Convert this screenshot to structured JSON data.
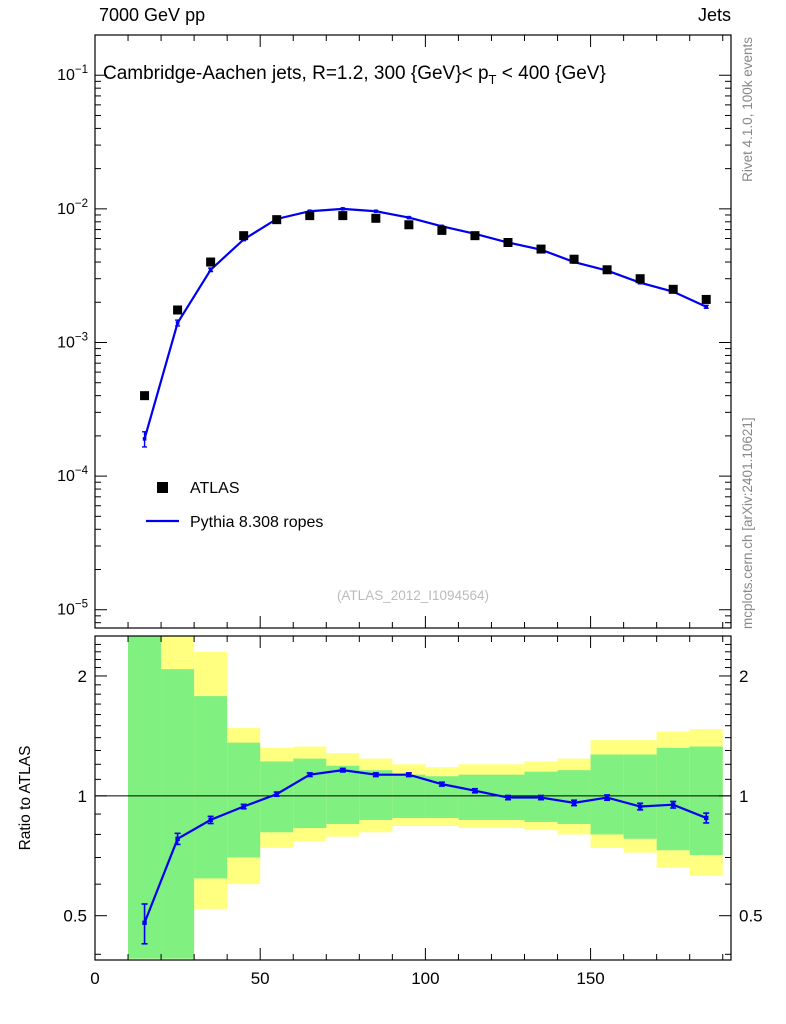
{
  "ui": {
    "header_left": "7000 GeV pp",
    "header_right": "Jets",
    "title_pre": "Cambridge-Aachen jets, R=1.2, 300 {GeV}< p",
    "title_sub": "T",
    "title_post": " < 400 {GeV}",
    "legend_atlas": "ATLAS",
    "legend_mc": "Pythia 8.308 ropes",
    "watermark": "(ATLAS_2012_I1094564)",
    "ratio_ylabel": "Ratio to ATLAS",
    "note_top": "Rivet 4.1.0,  100k events",
    "note_bottom": "mcplots.cern.ch [arXiv:2401.10621]"
  },
  "colors": {
    "mc_line": "#0000f0",
    "data_marker": "#000000",
    "band_yellow": "#ffff80",
    "band_green": "#80f080",
    "ref_line": "#000000",
    "note_gray": "#888888",
    "watermark_gray": "#bbbbbb"
  },
  "chart_data": [
    {
      "type": "line",
      "panel": "main",
      "title": "Cambridge-Aachen jets, R=1.2, 300 {GeV}< pT < 400 {GeV}",
      "yscale": "log",
      "ylim": [
        7.3e-06,
        0.2
      ],
      "xlim": [
        0,
        192.5
      ],
      "ytick_exponents": [
        -1,
        -2,
        -3,
        -4,
        -5
      ],
      "xticks_major": [
        0,
        50,
        100,
        150
      ],
      "xtick_minor_step": 10,
      "x": [
        15,
        25,
        35,
        45,
        55,
        65,
        75,
        85,
        95,
        105,
        115,
        125,
        135,
        145,
        155,
        165,
        175,
        185
      ],
      "series": [
        {
          "name": "ATLAS",
          "type": "scatter",
          "marker": "square",
          "color": "#000000",
          "values": [
            0.0004,
            0.00175,
            0.004,
            0.0063,
            0.0083,
            0.0089,
            0.0089,
            0.0085,
            0.0076,
            0.0069,
            0.0063,
            0.0056,
            0.005,
            0.0042,
            0.0035,
            0.003,
            0.0025,
            0.0021
          ]
        },
        {
          "name": "Pythia 8.308 ropes",
          "type": "line",
          "color": "#0000f0",
          "values": [
            0.00019,
            0.0014,
            0.0035,
            0.0059,
            0.0084,
            0.0096,
            0.01,
            0.0096,
            0.0086,
            0.0074,
            0.0065,
            0.0056,
            0.00495,
            0.004,
            0.00345,
            0.0028,
            0.0024,
            0.00185
          ],
          "yerr_frac": [
            0.13,
            0.05,
            0.03,
            0.02,
            0.015,
            0.012,
            0.01,
            0.01,
            0.01,
            0.01,
            0.01,
            0.012,
            0.012,
            0.014,
            0.015,
            0.018,
            0.02,
            0.025
          ]
        }
      ],
      "watermark": "(ATLAS_2012_I1094564)"
    },
    {
      "type": "ratio",
      "panel": "ratio",
      "ylabel": "Ratio to ATLAS",
      "yscale": "log",
      "ylim": [
        0.387,
        2.52
      ],
      "yticks": [
        0.5,
        1,
        2
      ],
      "ytick_minor": [
        0.4,
        0.6,
        0.7,
        0.8,
        0.9,
        1.1,
        1.2,
        1.3,
        1.4,
        1.5,
        1.6,
        1.7,
        1.8,
        1.9,
        2.1,
        2.2,
        2.3,
        2.4
      ],
      "ref_line": 1,
      "x": [
        15,
        25,
        35,
        45,
        55,
        65,
        75,
        85,
        95,
        105,
        115,
        125,
        135,
        145,
        155,
        165,
        175,
        185
      ],
      "bin_half_width": 5,
      "ratio": [
        0.48,
        0.78,
        0.87,
        0.94,
        1.01,
        1.13,
        1.16,
        1.13,
        1.13,
        1.07,
        1.03,
        0.99,
        0.99,
        0.96,
        0.99,
        0.94,
        0.95,
        0.88
      ],
      "ratio_err": [
        0.055,
        0.025,
        0.018,
        0.012,
        0.012,
        0.012,
        0.012,
        0.012,
        0.012,
        0.012,
        0.012,
        0.012,
        0.012,
        0.015,
        0.015,
        0.018,
        0.018,
        0.025
      ],
      "bands": {
        "yellow": {
          "color": "#ffff80",
          "lo": [
            0.39,
            0.39,
            0.52,
            0.6,
            0.74,
            0.77,
            0.79,
            0.81,
            0.84,
            0.84,
            0.83,
            0.83,
            0.82,
            0.8,
            0.74,
            0.72,
            0.66,
            0.63
          ],
          "hi": [
            2.52,
            2.52,
            2.3,
            1.48,
            1.32,
            1.33,
            1.28,
            1.24,
            1.2,
            1.18,
            1.2,
            1.2,
            1.22,
            1.24,
            1.38,
            1.38,
            1.45,
            1.47
          ]
        },
        "green": {
          "color": "#80f080",
          "lo": [
            0.39,
            0.39,
            0.62,
            0.7,
            0.81,
            0.83,
            0.85,
            0.87,
            0.88,
            0.88,
            0.87,
            0.87,
            0.86,
            0.85,
            0.8,
            0.78,
            0.73,
            0.71
          ],
          "hi": [
            2.52,
            2.08,
            1.78,
            1.36,
            1.22,
            1.24,
            1.19,
            1.16,
            1.13,
            1.12,
            1.13,
            1.13,
            1.15,
            1.16,
            1.27,
            1.27,
            1.32,
            1.33
          ]
        }
      }
    }
  ]
}
